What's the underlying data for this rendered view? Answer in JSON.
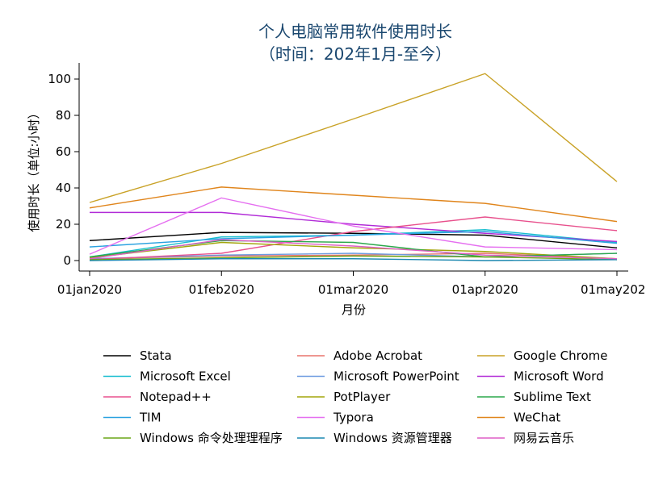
{
  "chart_data": {
    "type": "line",
    "title": "个人电脑常用软件使用时长",
    "subtitle": "（时间：202年1月-至今）",
    "xlabel": "月份",
    "ylabel": "使用时长（单位:小时）",
    "x": [
      "01jan2020",
      "01feb2020",
      "01mar2020",
      "01apr2020",
      "01may2020"
    ],
    "x_ticks": [
      "01jan2020",
      "01feb2020",
      "01mar2020",
      "01apr2020",
      "01may2020"
    ],
    "ylim": [
      0,
      100
    ],
    "y_ticks": [
      0,
      20,
      40,
      60,
      80,
      100
    ],
    "grid": false,
    "legend": "bottom",
    "series": [
      {
        "name": "Stata",
        "color": "#000000",
        "values": [
          11,
          15.5,
          15,
          14,
          7
        ]
      },
      {
        "name": "Adobe Acrobat",
        "color": "#e8746d",
        "values": [
          1,
          2.5,
          3,
          4,
          1
        ]
      },
      {
        "name": "Google Chrome",
        "color": "#c9a227",
        "values": [
          32,
          53.5,
          78,
          103,
          43.5
        ]
      },
      {
        "name": "Microsoft Excel",
        "color": "#17becf",
        "values": [
          2,
          13,
          14,
          17,
          10
        ]
      },
      {
        "name": "Microsoft PowerPoint",
        "color": "#6d9be0",
        "values": [
          1,
          3,
          4,
          2,
          4
        ]
      },
      {
        "name": "Microsoft Word",
        "color": "#b12bd7",
        "values": [
          26.5,
          26.5,
          20,
          15,
          10.5
        ]
      },
      {
        "name": "Notepad++",
        "color": "#e8518d",
        "values": [
          0.5,
          4,
          16,
          24,
          16.5
        ]
      },
      {
        "name": "PotPlayer",
        "color": "#a3a50c",
        "values": [
          1.5,
          10,
          7,
          5,
          1
        ]
      },
      {
        "name": "Sublime Text",
        "color": "#2ca84c",
        "values": [
          2,
          11,
          10,
          2,
          4
        ]
      },
      {
        "name": "TIM",
        "color": "#2aa1e0",
        "values": [
          7.5,
          12,
          14,
          16,
          9.5
        ]
      },
      {
        "name": "Typora",
        "color": "#e56ff0",
        "values": [
          3.5,
          34.5,
          19,
          7.5,
          6
        ]
      },
      {
        "name": "WeChat",
        "color": "#e0851c",
        "values": [
          29,
          40.5,
          36,
          31.5,
          21.5
        ]
      },
      {
        "name": "Windows 命令处理理程序",
        "color": "#6aa517",
        "values": [
          0.5,
          1.5,
          2.5,
          2,
          0.5
        ]
      },
      {
        "name": "Windows 资源管理器",
        "color": "#1c88b0",
        "values": [
          0,
          1,
          1,
          0,
          0.5
        ]
      },
      {
        "name": "网易云音乐",
        "color": "#dd5fc5",
        "values": [
          1,
          11.5,
          8,
          3,
          1
        ]
      }
    ]
  }
}
